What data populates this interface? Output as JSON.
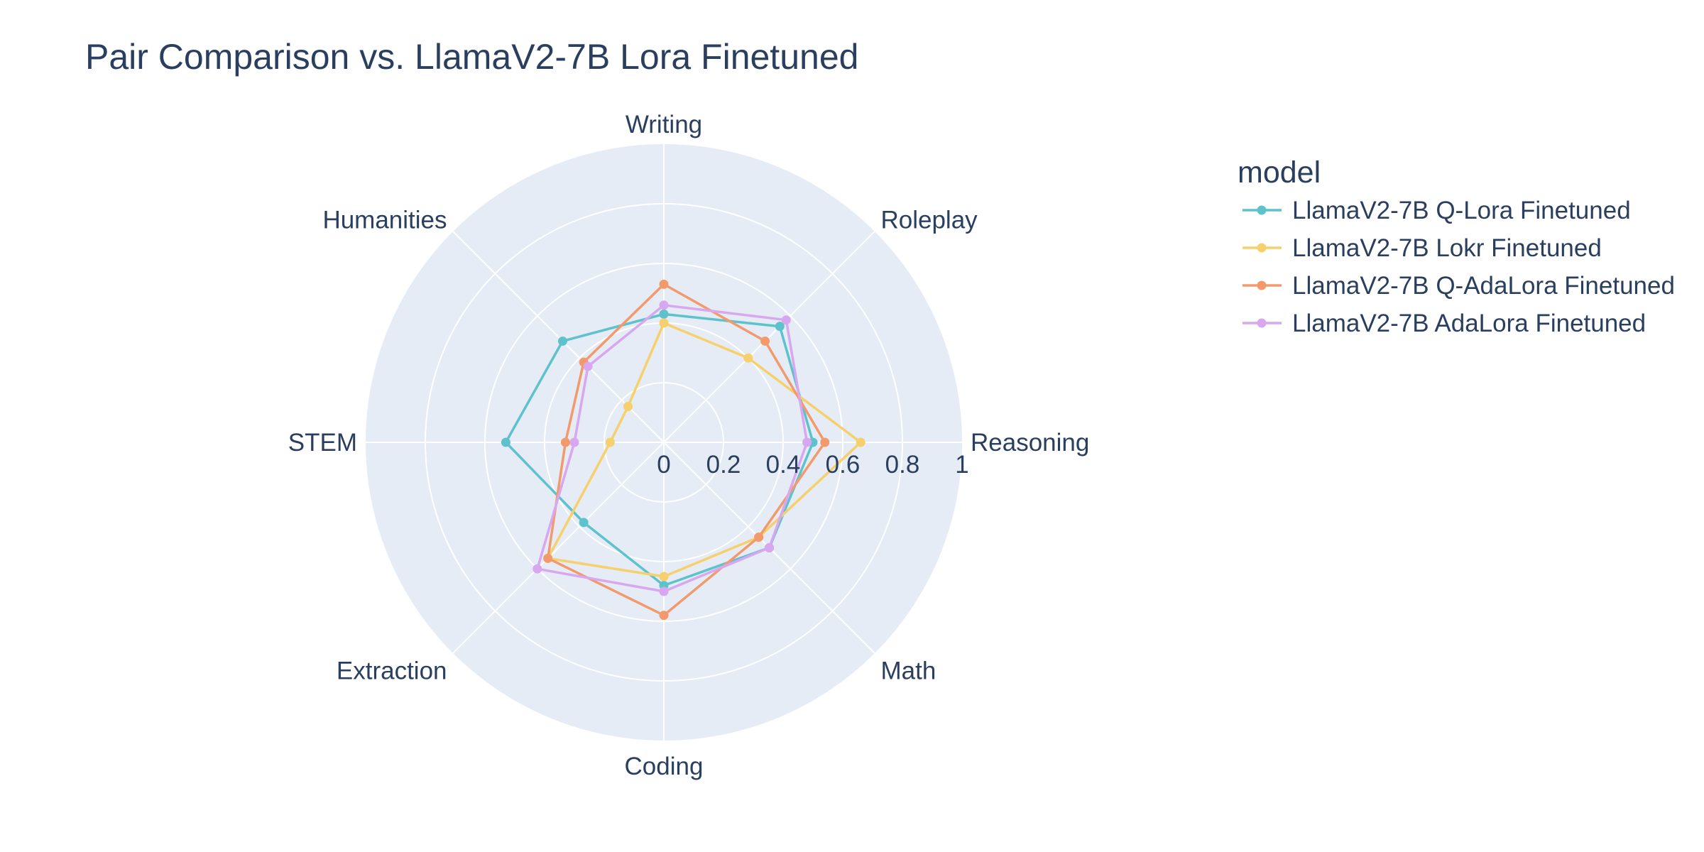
{
  "chart_data": {
    "type": "radar",
    "title": "Pair Comparison vs. LlamaV2-7B Lora Finetuned",
    "categories": [
      "Writing",
      "Roleplay",
      "Reasoning",
      "Math",
      "Coding",
      "Extraction",
      "STEM",
      "Humanities"
    ],
    "radial_range": [
      0,
      1
    ],
    "radial_ticks": [
      "0",
      "0.2",
      "0.4",
      "0.6",
      "0.8",
      "1"
    ],
    "grid": true,
    "legend_title": "model",
    "legend_position": "top-right",
    "series": [
      {
        "name": "LlamaV2-7B Q-Lora Finetuned",
        "color": "#5ec2cc",
        "values": [
          0.43,
          0.55,
          0.5,
          0.5,
          0.48,
          0.38,
          0.53,
          0.48
        ]
      },
      {
        "name": "LlamaV2-7B Lokr Finetuned",
        "color": "#f5d06c",
        "values": [
          0.4,
          0.4,
          0.66,
          0.45,
          0.45,
          0.55,
          0.18,
          0.17
        ]
      },
      {
        "name": "LlamaV2-7B Q-AdaLora Finetuned",
        "color": "#f39a6c",
        "values": [
          0.53,
          0.48,
          0.54,
          0.45,
          0.58,
          0.55,
          0.33,
          0.38
        ]
      },
      {
        "name": "LlamaV2-7B AdaLora Finetuned",
        "color": "#d8a7f0",
        "values": [
          0.46,
          0.58,
          0.48,
          0.5,
          0.5,
          0.6,
          0.3,
          0.36
        ]
      }
    ]
  }
}
